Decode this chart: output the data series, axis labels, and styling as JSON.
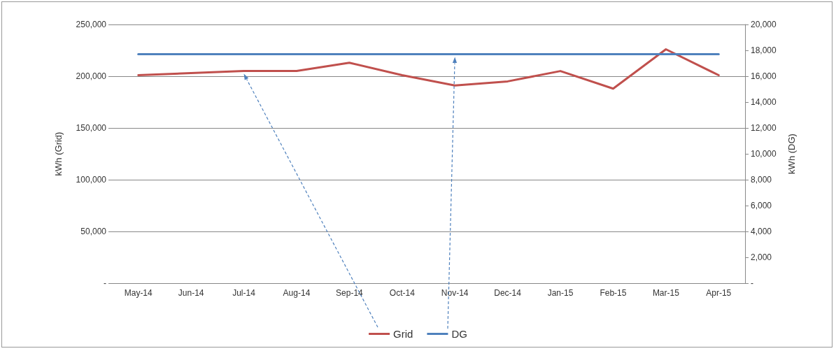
{
  "chart_data": {
    "type": "line",
    "ylabel": "kWh (Grid)",
    "y2label": "kWh (DG)",
    "categories": [
      "May-14",
      "Jun-14",
      "Jul-14",
      "Aug-14",
      "Sep-14",
      "Oct-14",
      "Nov-14",
      "Dec-14",
      "Jan-15",
      "Feb-15",
      "Mar-15",
      "Apr-15"
    ],
    "series": [
      {
        "name": "Grid",
        "color": "#c0504d",
        "values": [
          201000,
          203000,
          205000,
          205000,
          213000,
          201000,
          191000,
          195000,
          205000,
          188000,
          226000,
          201000
        ]
      },
      {
        "name": "DG",
        "color": "#4f81bd",
        "axis": "y2",
        "values": [
          17700,
          17700,
          17700,
          17700,
          17700,
          17700,
          17700,
          17700,
          17700,
          17700,
          17700,
          17700
        ]
      }
    ],
    "ylim": [
      0,
      250000
    ],
    "yticks": [
      {
        "value": 0,
        "label": "-"
      },
      {
        "value": 50000,
        "label": "50,000"
      },
      {
        "value": 100000,
        "label": "100,000"
      },
      {
        "value": 150000,
        "label": "150,000"
      },
      {
        "value": 200000,
        "label": "200,000"
      },
      {
        "value": 250000,
        "label": "250,000"
      }
    ],
    "y2lim": [
      0,
      20000
    ],
    "y2ticks": [
      {
        "value": 0,
        "label": "-"
      },
      {
        "value": 2000,
        "label": "2,000"
      },
      {
        "value": 4000,
        "label": "4,000"
      },
      {
        "value": 6000,
        "label": "6,000"
      },
      {
        "value": 8000,
        "label": "8,000"
      },
      {
        "value": 10000,
        "label": "10,000"
      },
      {
        "value": 12000,
        "label": "12,000"
      },
      {
        "value": 14000,
        "label": "14,000"
      },
      {
        "value": 16000,
        "label": "16,000"
      },
      {
        "value": 18000,
        "label": "18,000"
      },
      {
        "value": 20000,
        "label": "20,000"
      }
    ],
    "grid": "y",
    "legend": "bottom",
    "marker": "none",
    "line_style": "solid"
  }
}
